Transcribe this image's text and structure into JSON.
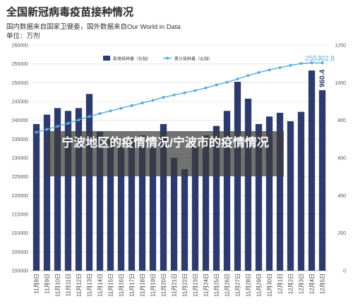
{
  "header": {
    "title": "全国新冠病毒疫苗接种情况",
    "subtitle": "国内数据来自国家卫健委，国外数据来自Our World in Data",
    "unit": "单位：万剂"
  },
  "overlay": {
    "text": "宁波地区的疫情情况/宁波市的疫情情况"
  },
  "colors": {
    "bar": "#2d3a6e",
    "line": "#5aa9de",
    "grid": "#e2e2e2"
  },
  "chart_data": {
    "type": "bar",
    "categories": [
      "11月8日",
      "11月9日",
      "11月10日",
      "11月11日",
      "11月12日",
      "11月13日",
      "11月14日",
      "11月15日",
      "11月16日",
      "11月17日",
      "11月18日",
      "11月19日",
      "11月20日",
      "11月21日",
      "11月22日",
      "11月23日",
      "11月24日",
      "11月25日",
      "11月26日",
      "11月27日",
      "11月28日",
      "11月29日",
      "11月30日",
      "12月1日",
      "12月2日",
      "12月3日",
      "12月4日",
      "12月5日"
    ],
    "series": [
      {
        "name": "新增接种量（右轴）",
        "axis": "right",
        "type": "bar",
        "values": [
          780,
          830,
          865,
          850,
          865,
          940,
          740,
          700,
          660,
          700,
          720,
          700,
          780,
          600,
          540,
          660,
          720,
          770,
          850,
          1005,
          915,
          780,
          820,
          840,
          795,
          845,
          1065,
          960.4
        ]
      },
      {
        "name": "累计接种量（左轴）",
        "axis": "left",
        "type": "line",
        "values": [
          236800,
          237600,
          238400,
          239200,
          240100,
          241000,
          241800,
          242500,
          243200,
          243900,
          244600,
          245300,
          246100,
          246700,
          247300,
          247900,
          248600,
          249400,
          250100,
          251000,
          251900,
          252700,
          253400,
          254000,
          254600,
          255100,
          255302.8,
          255302.8
        ]
      }
    ],
    "ylim_left": [
      200000,
      260000
    ],
    "yticks_left": [
      "200000",
      "205000",
      "210000",
      "215000",
      "220000",
      "225000",
      "230000",
      "235000",
      "240000",
      "245000",
      "250000",
      "255000",
      "260000"
    ],
    "ylim_right": [
      0,
      1200
    ],
    "yticks_right": [
      "0",
      "200",
      "400",
      "600",
      "800",
      "1000",
      "1200"
    ],
    "annotations": {
      "line_last": "255302.8",
      "bar_last": "960.4"
    },
    "grid": true,
    "legend_position": "top"
  }
}
